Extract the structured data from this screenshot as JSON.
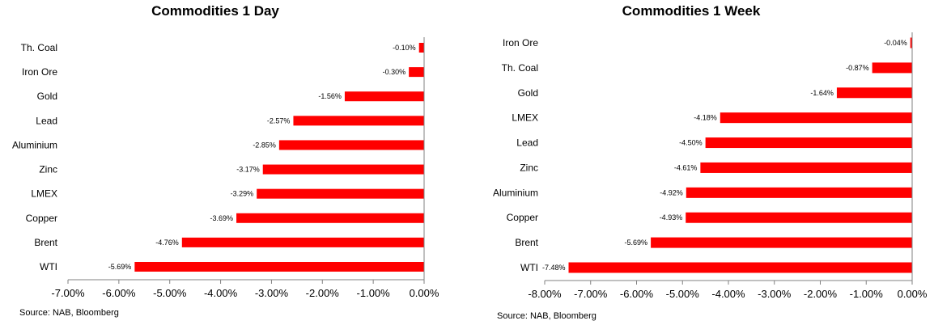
{
  "chart_data": [
    {
      "type": "bar",
      "orientation": "horizontal",
      "title": "Commodities 1 Day",
      "categories": [
        "Th. Coal",
        "Iron Ore",
        "Gold",
        "Lead",
        "Aluminium",
        "Zinc",
        "LMEX",
        "Copper",
        "Brent",
        "WTI"
      ],
      "values": [
        -0.1,
        -0.3,
        -1.56,
        -2.57,
        -2.85,
        -3.17,
        -3.29,
        -3.69,
        -4.76,
        -5.69
      ],
      "value_labels": [
        "-0.10%",
        "-0.30%",
        "-1.56%",
        "-2.57%",
        "-2.85%",
        "-3.17%",
        "-3.29%",
        "-3.69%",
        "-4.76%",
        "-5.69%"
      ],
      "xlim": [
        -7,
        0
      ],
      "ticks": [
        -7,
        -6,
        -5,
        -4,
        -3,
        -2,
        -1,
        0
      ],
      "tick_labels": [
        "-7.00%",
        "-6.00%",
        "-5.00%",
        "-4.00%",
        "-3.00%",
        "-2.00%",
        "-1.00%",
        "0.00%"
      ],
      "bar_color": "#ff0000",
      "grid": false,
      "source": "Source: NAB, Bloomberg"
    },
    {
      "type": "bar",
      "orientation": "horizontal",
      "title": "Commodities 1 Week",
      "categories": [
        "Iron Ore",
        "Th. Coal",
        "Gold",
        "LMEX",
        "Lead",
        "Zinc",
        "Aluminium",
        "Copper",
        "Brent",
        "WTI"
      ],
      "values": [
        -0.04,
        -0.87,
        -1.64,
        -4.18,
        -4.5,
        -4.61,
        -4.92,
        -4.93,
        -5.69,
        -7.48
      ],
      "value_labels": [
        "-0.04%",
        "-0.87%",
        "-1.64%",
        "-4.18%",
        "-4.50%",
        "-4.61%",
        "-4.92%",
        "-4.93%",
        "-5.69%",
        "-7.48%"
      ],
      "xlim": [
        -8,
        0
      ],
      "ticks": [
        -8,
        -7,
        -6,
        -5,
        -4,
        -3,
        -2,
        -1,
        0
      ],
      "tick_labels": [
        "-8.00%",
        "-7.00%",
        "-6.00%",
        "-5.00%",
        "-4.00%",
        "-3.00%",
        "-2.00%",
        "-1.00%",
        "0.00%"
      ],
      "bar_color": "#ff0000",
      "grid": false,
      "source": "Source: NAB, Bloomberg"
    }
  ]
}
